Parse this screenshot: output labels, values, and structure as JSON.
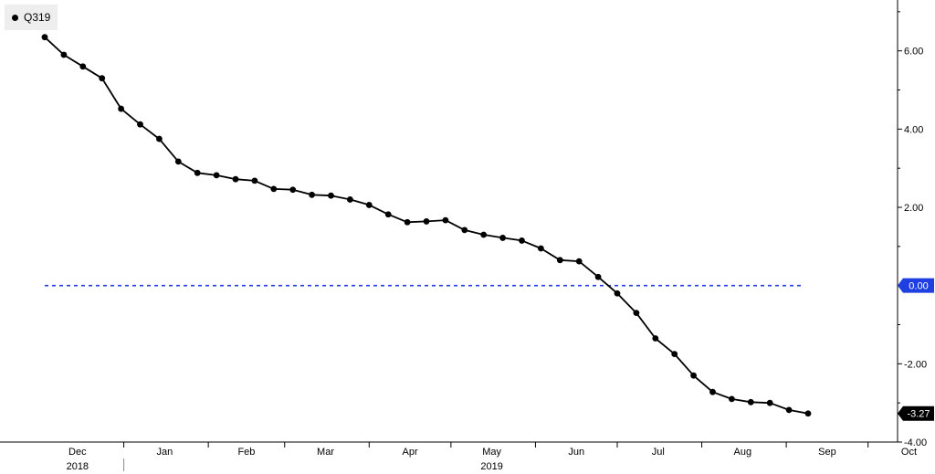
{
  "chart_data": {
    "type": "line",
    "series": [
      {
        "name": "Q319",
        "color": "#000000",
        "marker": "circle",
        "values": [
          [
            "2018-12-03",
            6.35
          ],
          [
            "2018-12-10",
            5.9
          ],
          [
            "2018-12-17",
            5.6
          ],
          [
            "2018-12-24",
            5.3
          ],
          [
            "2018-12-31",
            4.52
          ],
          [
            "2019-01-07",
            4.12
          ],
          [
            "2019-01-14",
            3.75
          ],
          [
            "2019-01-21",
            3.17
          ],
          [
            "2019-01-28",
            2.88
          ],
          [
            "2019-02-04",
            2.82
          ],
          [
            "2019-02-11",
            2.72
          ],
          [
            "2019-02-18",
            2.68
          ],
          [
            "2019-02-25",
            2.47
          ],
          [
            "2019-03-04",
            2.45
          ],
          [
            "2019-03-11",
            2.32
          ],
          [
            "2019-03-18",
            2.3
          ],
          [
            "2019-03-25",
            2.2
          ],
          [
            "2019-04-01",
            2.06
          ],
          [
            "2019-04-08",
            1.82
          ],
          [
            "2019-04-15",
            1.62
          ],
          [
            "2019-04-22",
            1.64
          ],
          [
            "2019-04-29",
            1.67
          ],
          [
            "2019-05-06",
            1.42
          ],
          [
            "2019-05-13",
            1.3
          ],
          [
            "2019-05-20",
            1.22
          ],
          [
            "2019-05-27",
            1.15
          ],
          [
            "2019-06-03",
            0.95
          ],
          [
            "2019-06-10",
            0.65
          ],
          [
            "2019-06-17",
            0.62
          ],
          [
            "2019-06-24",
            0.22
          ],
          [
            "2019-07-01",
            -0.2
          ],
          [
            "2019-07-08",
            -0.7
          ],
          [
            "2019-07-15",
            -1.35
          ],
          [
            "2019-07-22",
            -1.75
          ],
          [
            "2019-07-29",
            -2.3
          ],
          [
            "2019-08-05",
            -2.72
          ],
          [
            "2019-08-12",
            -2.9
          ],
          [
            "2019-08-19",
            -2.98
          ],
          [
            "2019-08-26",
            -3.0
          ],
          [
            "2019-09-02",
            -3.18
          ],
          [
            "2019-09-09",
            -3.27
          ]
        ]
      }
    ],
    "reference_line": {
      "value": 0.0,
      "color": "#1f3fe0",
      "style": "dashed"
    },
    "x_start": "2018-12-03",
    "x_end": "2019-09-09",
    "x_ticks": [
      {
        "label": "Dec",
        "date": "2018-12-15"
      },
      {
        "label": "Jan",
        "date": "2019-01-16"
      },
      {
        "label": "Feb",
        "date": "2019-02-15"
      },
      {
        "label": "Mar",
        "date": "2019-03-16"
      },
      {
        "label": "Apr",
        "date": "2019-04-16"
      },
      {
        "label": "May",
        "date": "2019-05-16"
      },
      {
        "label": "Jun",
        "date": "2019-06-16"
      },
      {
        "label": "Jul",
        "date": "2019-07-16"
      },
      {
        "label": "Aug",
        "date": "2019-08-16"
      },
      {
        "label": "Sep",
        "date": "2019-09-16"
      },
      {
        "label": "Oct",
        "date": "2019-10-16"
      }
    ],
    "x_tick_boundaries": [
      "2019-01-01",
      "2019-02-01",
      "2019-03-01",
      "2019-04-01",
      "2019-05-01",
      "2019-06-01",
      "2019-07-01",
      "2019-08-01",
      "2019-09-01",
      "2019-10-01"
    ],
    "x_year_labels": [
      {
        "label": "2018",
        "date": "2018-12-15"
      },
      {
        "label": "2019",
        "date": "2019-05-16"
      }
    ],
    "y_ticks": [
      {
        "label": "6.00",
        "value": 6
      },
      {
        "label": "4.00",
        "value": 4
      },
      {
        "label": "2.00",
        "value": 2
      },
      {
        "label": "-2.00",
        "value": -2
      },
      {
        "label": "-4.00",
        "value": -4
      }
    ],
    "ylim": [
      -4.0,
      7.3
    ],
    "value_tags": [
      {
        "label": "0.00",
        "value": 0.0,
        "bg": "#1f3fe0",
        "fg": "#ffffff"
      },
      {
        "label": "-3.27",
        "value": -3.27,
        "bg": "#000000",
        "fg": "#ffffff"
      }
    ],
    "legend": {
      "position": "top-left"
    },
    "grid": false
  }
}
